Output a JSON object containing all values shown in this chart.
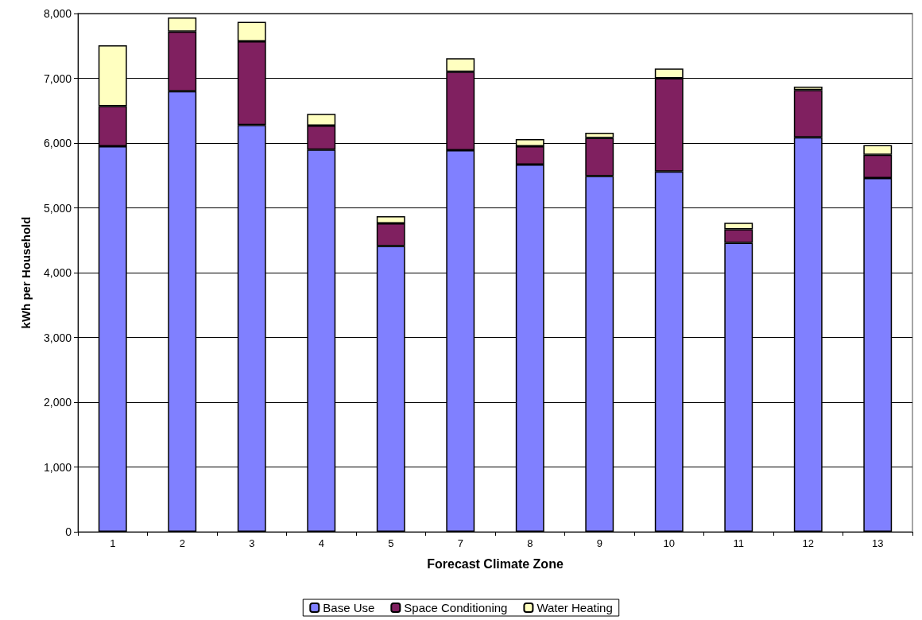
{
  "chart_data": {
    "type": "bar",
    "stacked": true,
    "xlabel": "Forecast Climate Zone",
    "ylabel": "kWh per Household",
    "categories": [
      "1",
      "2",
      "3",
      "4",
      "5",
      "7",
      "8",
      "9",
      "10",
      "11",
      "12",
      "13"
    ],
    "series": [
      {
        "name": "Base Use",
        "color": "#8080ff",
        "values": [
          5950,
          6800,
          6280,
          5900,
          4410,
          5890,
          5670,
          5490,
          5560,
          4460,
          6090,
          5460
        ]
      },
      {
        "name": "Space Conditioning",
        "color": "#802060",
        "values": [
          620,
          920,
          1290,
          370,
          350,
          1210,
          280,
          590,
          1440,
          210,
          730,
          360
        ]
      },
      {
        "name": "Water Heating",
        "color": "#ffffc0",
        "values": [
          940,
          220,
          300,
          180,
          110,
          210,
          110,
          80,
          150,
          100,
          50,
          150
        ]
      }
    ],
    "ylim": [
      0,
      8000
    ],
    "yticks": [
      0,
      {
        "value": 1000,
        "label": "1,000"
      },
      {
        "value": 2000,
        "label": "2,000"
      },
      {
        "value": 3000,
        "label": "3,000"
      },
      {
        "value": 4000,
        "label": "4,000"
      },
      {
        "value": 5000,
        "label": "5,000"
      },
      {
        "value": 6000,
        "label": "6,000"
      },
      {
        "value": 7000,
        "label": "7,000"
      },
      {
        "value": 8000,
        "label": "8,000"
      }
    ],
    "grid": "y",
    "legend": "bottom"
  }
}
